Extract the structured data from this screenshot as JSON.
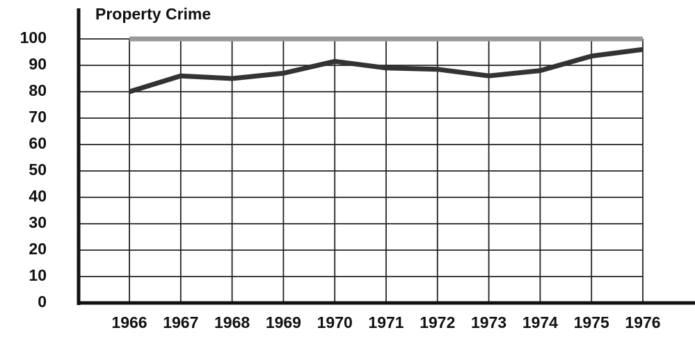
{
  "chart_data": {
    "type": "line",
    "title": "Property Crime",
    "x": [
      1966,
      1967,
      1968,
      1969,
      1970,
      1971,
      1972,
      1973,
      1974,
      1975,
      1976
    ],
    "series": [
      {
        "color": "#999999",
        "values": [
          100,
          100,
          100,
          100,
          100,
          100,
          100,
          100,
          100,
          100,
          100
        ]
      },
      {
        "color": "#333333",
        "values": [
          80,
          86,
          85,
          87,
          91.5,
          89,
          88.5,
          86,
          88,
          93.5,
          96
        ]
      }
    ],
    "xlim": [
      1966,
      1976
    ],
    "xticks": [
      1966,
      1967,
      1968,
      1969,
      1970,
      1971,
      1972,
      1973,
      1974,
      1975,
      1976
    ],
    "ylim": [
      0,
      100
    ],
    "yticks": [
      0,
      10,
      20,
      30,
      40,
      50,
      60,
      70,
      80,
      90,
      100
    ],
    "grid": true
  }
}
